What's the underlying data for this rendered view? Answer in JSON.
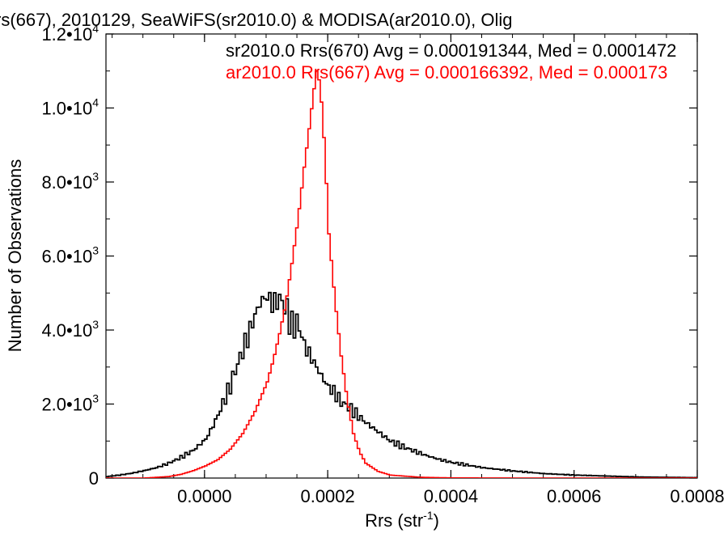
{
  "chart_data": {
    "type": "histogram",
    "title": "rs(667), 2010129, SeaWiFS(sr2010.0) & MODISA(ar2010.0), Olig",
    "xlabel_main": "Rrs (str",
    "xlabel_sup": "-1",
    "xlabel_end": ")",
    "ylabel": "Number of Observations",
    "xlim": [
      -0.00016,
      0.0008
    ],
    "ylim": [
      0,
      12000
    ],
    "x_ticks": [
      {
        "value": 0.0,
        "label": "0.0000"
      },
      {
        "value": 0.0002,
        "label": "0.0002"
      },
      {
        "value": 0.0004,
        "label": "0.0004"
      },
      {
        "value": 0.0006,
        "label": "0.0006"
      },
      {
        "value": 0.0008,
        "label": "0.0008"
      }
    ],
    "y_ticks": [
      {
        "value": 0,
        "mantissa": "0",
        "exponent": ""
      },
      {
        "value": 2000,
        "mantissa": "2.0•10",
        "exponent": "3"
      },
      {
        "value": 4000,
        "mantissa": "4.0•10",
        "exponent": "3"
      },
      {
        "value": 6000,
        "mantissa": "6.0•10",
        "exponent": "3"
      },
      {
        "value": 8000,
        "mantissa": "8.0•10",
        "exponent": "3"
      },
      {
        "value": 10000,
        "mantissa": "1.0•10",
        "exponent": "4"
      },
      {
        "value": 12000,
        "mantissa": "1.2•10",
        "exponent": "4"
      }
    ],
    "annotations": [
      {
        "text": "sr2010.0 Rrs(670) Avg = 0.000191344, Med = 0.0001472",
        "color": "#000000"
      },
      {
        "text": "ar2010.0 Rrs(667) Avg = 0.000166392, Med = 0.000173",
        "color": "#ff0000"
      }
    ],
    "series": [
      {
        "color": "#000000",
        "bin_width": 4e-06,
        "x": [
          -0.00016,
          -0.00014,
          -0.00012,
          -0.0001,
          -8e-05,
          -6e-05,
          -4e-05,
          -2e-05,
          -1e-05,
          0.0,
          1e-05,
          2e-05,
          3e-05,
          4e-05,
          5e-05,
          6e-05,
          7e-05,
          8e-05,
          9e-05,
          0.0001,
          0.00011,
          0.00012,
          0.00013,
          0.00014,
          0.00015,
          0.00016,
          0.00017,
          0.00018,
          0.00019,
          0.0002,
          0.00021,
          0.00022,
          0.00023,
          0.00024,
          0.00026,
          0.00028,
          0.0003,
          0.00032,
          0.00034,
          0.00036,
          0.00038,
          0.0004,
          0.00045,
          0.0005,
          0.00055,
          0.0006,
          0.0007,
          0.0008
        ],
        "y": [
          40,
          80,
          130,
          200,
          280,
          400,
          560,
          750,
          900,
          1050,
          1350,
          1700,
          2100,
          2500,
          3000,
          3450,
          3900,
          4400,
          4800,
          4900,
          4700,
          4850,
          4600,
          4100,
          4200,
          3600,
          3300,
          3000,
          2700,
          2450,
          2300,
          2050,
          1950,
          1800,
          1500,
          1250,
          1000,
          850,
          720,
          600,
          500,
          420,
          280,
          190,
          120,
          80,
          30,
          10
        ]
      },
      {
        "color": "#ff0000",
        "bin_width": 4e-06,
        "x": [
          -0.00016,
          -0.0001,
          -8e-05,
          -6e-05,
          -4e-05,
          -2e-05,
          0.0,
          2e-05,
          4e-05,
          6e-05,
          8e-05,
          0.0001,
          0.00011,
          0.00012,
          0.00013,
          0.00014,
          0.00015,
          0.00016,
          0.00017,
          0.000175,
          0.00018,
          0.000185,
          0.00019,
          0.000195,
          0.0002,
          0.00021,
          0.00022,
          0.00023,
          0.00024,
          0.00025,
          0.00026,
          0.00028,
          0.0003,
          0.00035,
          0.0004,
          0.0005,
          0.0008
        ],
        "y": [
          0,
          0,
          20,
          40,
          100,
          200,
          330,
          500,
          780,
          1200,
          1800,
          2600,
          3200,
          3900,
          4700,
          5800,
          7000,
          8400,
          9700,
          10400,
          11000,
          10700,
          9800,
          8300,
          6600,
          4800,
          3300,
          2100,
          1200,
          700,
          400,
          180,
          80,
          20,
          5,
          0,
          0
        ]
      }
    ]
  }
}
